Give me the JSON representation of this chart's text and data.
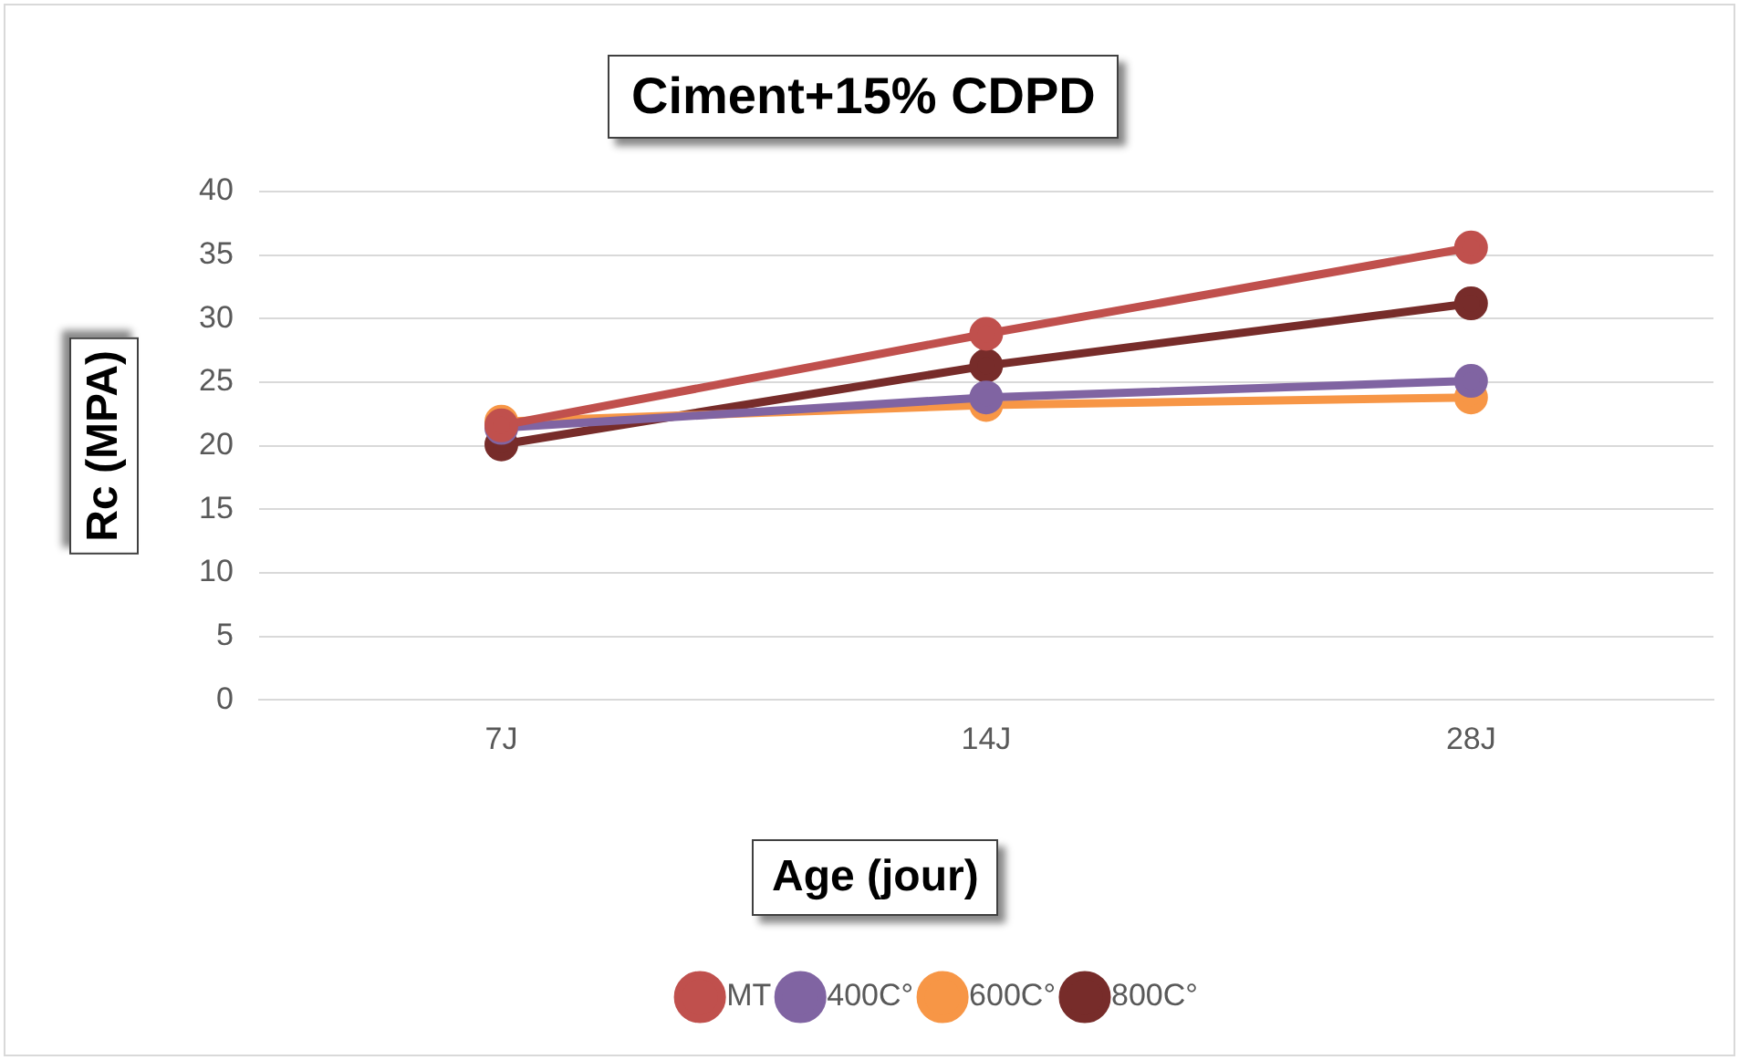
{
  "chart_data": {
    "type": "line",
    "title": "Ciment+15% CDPD",
    "xlabel": "Age (jour)",
    "ylabel": "Rc (MPA)",
    "categories": [
      "7J",
      "14J",
      "28J"
    ],
    "series": [
      {
        "name": "MT",
        "color": "#c0504d",
        "values": [
          21.6,
          28.8,
          35.6
        ]
      },
      {
        "name": "400C°",
        "color": "#8064a2",
        "values": [
          21.4,
          23.8,
          25.1
        ]
      },
      {
        "name": "600C°",
        "color": "#f79646",
        "values": [
          21.9,
          23.2,
          23.8
        ]
      },
      {
        "name": "800C°",
        "color": "#772c2a",
        "values": [
          20.1,
          26.3,
          31.2
        ]
      }
    ],
    "ylim": [
      0,
      40
    ],
    "yticks": [
      0,
      5,
      10,
      15,
      20,
      25,
      30,
      35,
      40
    ],
    "grid": "y",
    "legend": "bottom",
    "marker": "circle",
    "line_style": "solid"
  }
}
